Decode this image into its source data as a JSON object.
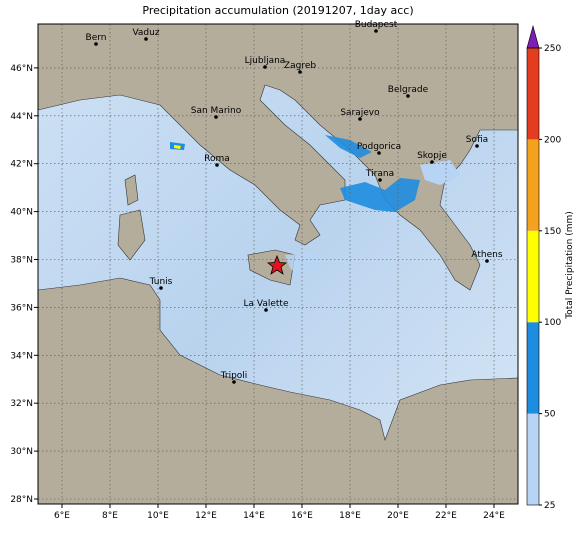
{
  "title": "Precipitation accumulation (20191207, 1day acc)",
  "lon_ticks": [
    "6°E",
    "8°E",
    "10°E",
    "12°E",
    "14°E",
    "16°E",
    "18°E",
    "20°E",
    "22°E",
    "24°E"
  ],
  "lat_ticks": [
    "28°N",
    "30°N",
    "32°N",
    "34°N",
    "36°N",
    "38°N",
    "40°N",
    "42°N",
    "44°N",
    "46°N"
  ],
  "cities": [
    "Bern",
    "Vaduz",
    "Budapest",
    "Ljubljana",
    "Zagreb",
    "Belgrade",
    "San Marino",
    "Sarajevo",
    "Podgorica",
    "Sofia",
    "Skopje",
    "Roma",
    "Tirana",
    "Athens",
    "Tunis",
    "La Valette",
    "Tripoli"
  ],
  "colorbar": {
    "label": "Total Precipitation (mm)",
    "ticks": [
      25,
      50,
      100,
      150,
      200,
      250
    ],
    "colors": [
      "#b8d4f4",
      "#1e8ddf",
      "#ffff00",
      "#f4a21e",
      "#e43c1e"
    ],
    "extend_color": "#7b1fb5"
  }
}
